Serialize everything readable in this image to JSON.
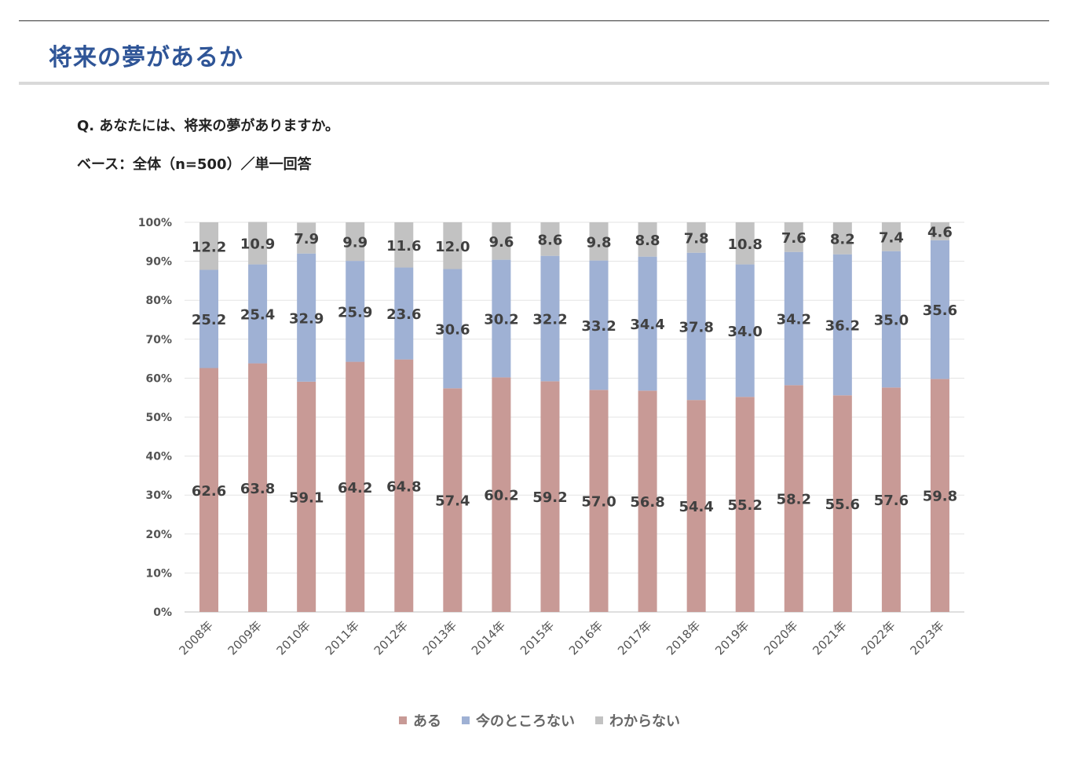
{
  "header": {
    "title": "将来の夢があるか",
    "question": "Q. あなたには、将来の夢がありますか。",
    "base": "ベース：全体（n=500）／単一回答"
  },
  "chart_data": {
    "type": "bar",
    "stacked": true,
    "categories": [
      "2008年",
      "2009年",
      "2010年",
      "2011年",
      "2012年",
      "2013年",
      "2014年",
      "2015年",
      "2016年",
      "2017年",
      "2018年",
      "2019年",
      "2020年",
      "2021年",
      "2022年",
      "2023年"
    ],
    "series": [
      {
        "name": "ある",
        "color": "#c89a96",
        "values": [
          62.6,
          63.8,
          59.1,
          64.2,
          64.8,
          57.4,
          60.2,
          59.2,
          57.0,
          56.8,
          54.4,
          55.2,
          58.2,
          55.6,
          57.6,
          59.8
        ]
      },
      {
        "name": "今のところない",
        "color": "#9fb1d4",
        "values": [
          25.2,
          25.4,
          32.9,
          25.9,
          23.6,
          30.6,
          30.2,
          32.2,
          33.2,
          34.4,
          37.8,
          34.0,
          34.2,
          36.2,
          35.0,
          35.6
        ]
      },
      {
        "name": "わからない",
        "color": "#c2c2c2",
        "values": [
          12.2,
          10.9,
          7.9,
          9.9,
          11.6,
          12.0,
          9.6,
          8.6,
          9.8,
          8.8,
          7.8,
          10.8,
          7.6,
          8.2,
          7.4,
          4.6
        ]
      }
    ],
    "data_labels": [
      [
        "62.6",
        "63.8",
        "59.1",
        "64.2",
        "64.8",
        "57.4",
        "60.2",
        "59.2",
        "57.0",
        "56.8",
        "54.4",
        "55.2",
        "58.2",
        "55.6",
        "57.6",
        "59.8"
      ],
      [
        "25.2",
        "25.4",
        "32.9",
        "25.9",
        "23.6",
        "30.6",
        "30.2",
        "32.2",
        "33.2",
        "34.4",
        "37.8",
        "34.0",
        "34.2",
        "36.2",
        "35.0",
        "35.6"
      ],
      [
        "12.2",
        "10.9",
        "7.9",
        "9.9",
        "11.6",
        "12.0",
        "9.6",
        "8.6",
        "9.8",
        "8.8",
        "7.8",
        "10.8",
        "7.6",
        "8.2",
        "7.4",
        "4.6"
      ]
    ],
    "y_ticks": [
      "0%",
      "10%",
      "20%",
      "30%",
      "40%",
      "50%",
      "60%",
      "70%",
      "80%",
      "90%",
      "100%"
    ],
    "ylim": [
      0,
      100
    ],
    "grid": true,
    "legend_position": "bottom"
  }
}
